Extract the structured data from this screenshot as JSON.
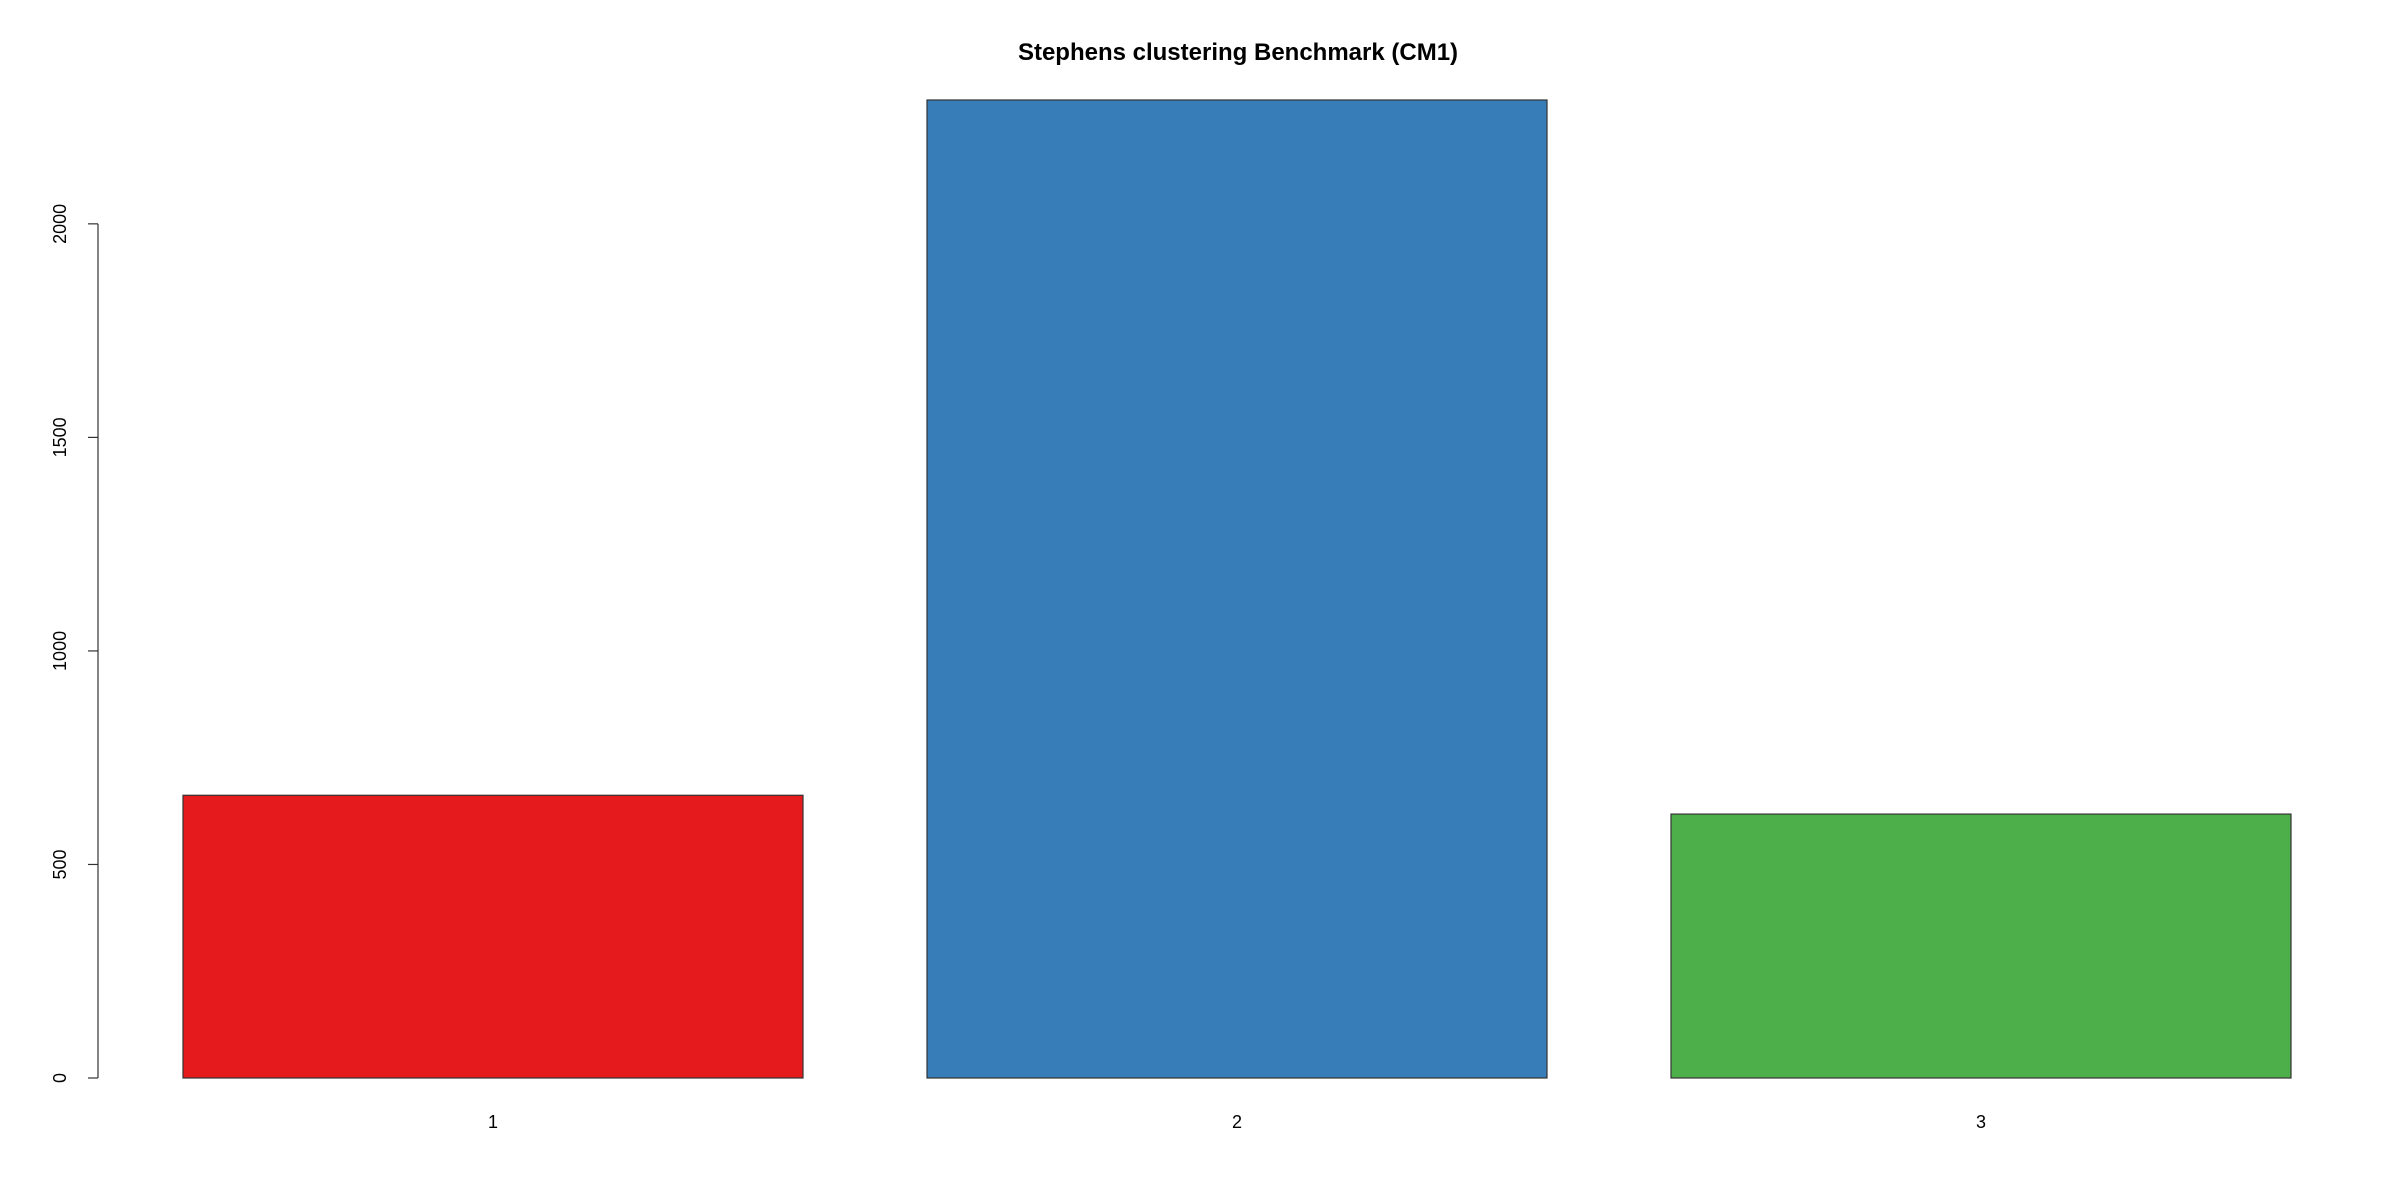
{
  "chart_data": {
    "type": "bar",
    "title": "Stephens clustering Benchmark (CM1)",
    "xlabel": "",
    "ylabel": "",
    "categories": [
      "1",
      "2",
      "3"
    ],
    "values": [
      662,
      2290,
      618
    ],
    "colors": [
      "#e41a1c",
      "#377eb8",
      "#4daf4a"
    ],
    "ylim": [
      0,
      2290
    ],
    "yticks": [
      0,
      500,
      1000,
      1500,
      2000
    ],
    "grid": false,
    "legend": "none"
  }
}
